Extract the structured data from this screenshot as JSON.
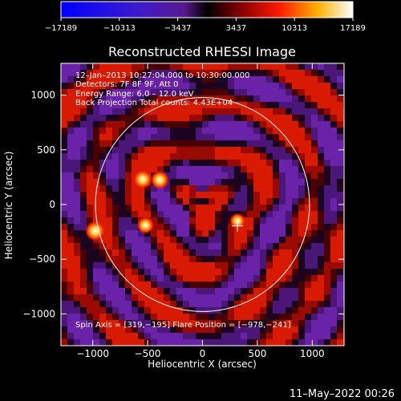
{
  "chart_data": {
    "type": "heatmap",
    "title": "Reconstructed RHESSI Image",
    "xlabel": "Heliocentric X (arcsec)",
    "ylabel": "Heliocentric Y (arcsec)",
    "xlim": [
      -1290,
      1290
    ],
    "ylim": [
      -1290,
      1290
    ],
    "x_ticks": [
      -1000,
      -500,
      0,
      500,
      1000
    ],
    "y_ticks": [
      -1000,
      -500,
      0,
      500,
      1000
    ],
    "colorbar": {
      "range": [
        -17189,
        17189
      ],
      "tick_labels": [
        "−17189",
        "−10313",
        "−3437",
        "3437",
        "10313",
        "17189"
      ]
    },
    "info_lines": [
      "12–Jan–2013 10:27:04.000 to 10:30:00.000",
      "Detectors: 7F 8F 9F, Att 0",
      "Energy Range: 6.0 – 12.0 keV",
      "Back Projection    Total counts: 4.43E+04"
    ],
    "footer_text": "Spin Axis = [319,−195]    Flare Position = [−978,−241]",
    "solar_disk": {
      "center": [
        0,
        0
      ],
      "radius": 975
    },
    "spin_axis_marker": [
      319,
      -195
    ],
    "sources": [
      {
        "x": -978,
        "y": -241,
        "intensity": 17189
      },
      {
        "x": -545,
        "y": 230,
        "intensity": 15000
      },
      {
        "x": -390,
        "y": 225,
        "intensity": 14000
      },
      {
        "x": -520,
        "y": -190,
        "intensity": 11500
      },
      {
        "x": 319,
        "y": -150,
        "intensity": 9000
      }
    ]
  },
  "timestamp": "11–May–2022 00:26"
}
